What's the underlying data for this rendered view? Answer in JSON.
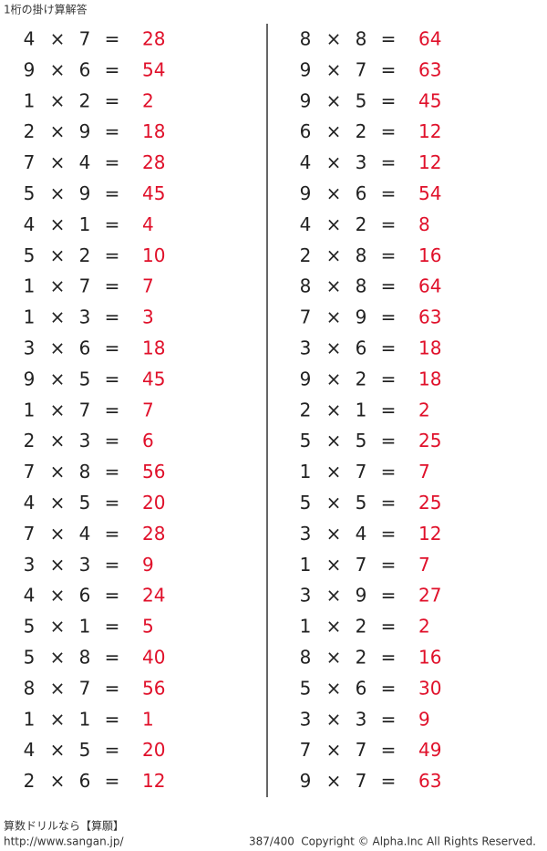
{
  "header": {
    "title": "1桁の掛け算解答"
  },
  "operators": {
    "times": "×",
    "equals": "="
  },
  "columns": [
    {
      "problems": [
        [
          4,
          7,
          28
        ],
        [
          9,
          6,
          54
        ],
        [
          1,
          2,
          2
        ],
        [
          2,
          9,
          18
        ],
        [
          7,
          4,
          28
        ],
        [
          5,
          9,
          45
        ],
        [
          4,
          1,
          4
        ],
        [
          5,
          2,
          10
        ],
        [
          1,
          7,
          7
        ],
        [
          1,
          3,
          3
        ],
        [
          3,
          6,
          18
        ],
        [
          9,
          5,
          45
        ],
        [
          1,
          7,
          7
        ],
        [
          2,
          3,
          6
        ],
        [
          7,
          8,
          56
        ],
        [
          4,
          5,
          20
        ],
        [
          7,
          4,
          28
        ],
        [
          3,
          3,
          9
        ],
        [
          4,
          6,
          24
        ],
        [
          5,
          1,
          5
        ],
        [
          5,
          8,
          40
        ],
        [
          8,
          7,
          56
        ],
        [
          1,
          1,
          1
        ],
        [
          4,
          5,
          20
        ],
        [
          2,
          6,
          12
        ]
      ]
    },
    {
      "problems": [
        [
          8,
          8,
          64
        ],
        [
          9,
          7,
          63
        ],
        [
          9,
          5,
          45
        ],
        [
          6,
          2,
          12
        ],
        [
          4,
          3,
          12
        ],
        [
          9,
          6,
          54
        ],
        [
          4,
          2,
          8
        ],
        [
          2,
          8,
          16
        ],
        [
          8,
          8,
          64
        ],
        [
          7,
          9,
          63
        ],
        [
          3,
          6,
          18
        ],
        [
          9,
          2,
          18
        ],
        [
          2,
          1,
          2
        ],
        [
          5,
          5,
          25
        ],
        [
          1,
          7,
          7
        ],
        [
          5,
          5,
          25
        ],
        [
          3,
          4,
          12
        ],
        [
          1,
          7,
          7
        ],
        [
          3,
          9,
          27
        ],
        [
          1,
          2,
          2
        ],
        [
          8,
          2,
          16
        ],
        [
          5,
          6,
          30
        ],
        [
          3,
          3,
          9
        ],
        [
          7,
          7,
          49
        ],
        [
          9,
          7,
          63
        ]
      ]
    }
  ],
  "footer": {
    "brand": "算数ドリルなら【算願】",
    "url": "http://www.sangan.jp/",
    "page": "387/400",
    "copyright": "Copyright © Alpha.Inc All Rights Reserved."
  }
}
